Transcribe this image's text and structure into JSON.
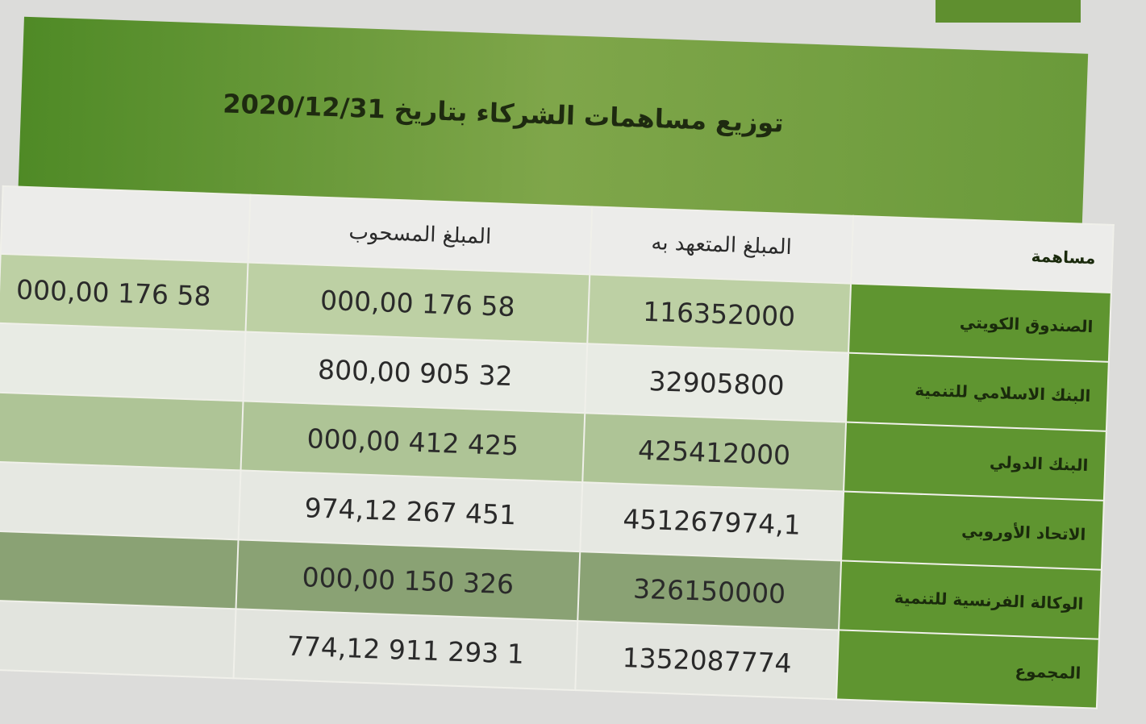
{
  "title": "توزيع مساهمات الشركاء بتاريخ 2020/12/31",
  "header": {
    "label": "مساهمة",
    "committed": "المبلغ المتعهد به",
    "withdrawn": "المبلغ المسحوب",
    "extra": ""
  },
  "rows": [
    {
      "label": "الصندوق الكويتي",
      "committed": "116352000",
      "withdrawn": "58 176 000,00",
      "extra": "58 176 000,00"
    },
    {
      "label": "البنك الاسلامي للتنمية",
      "committed": "32905800",
      "withdrawn": "32 905 800,00",
      "extra": ""
    },
    {
      "label": "البنك الدولي",
      "committed": "425412000",
      "withdrawn": "425 412 000,00",
      "extra": ""
    },
    {
      "label": "الاتحاد الأوروبي",
      "committed": "451267974,1",
      "withdrawn": "451 267 974,12",
      "extra": ""
    },
    {
      "label": "الوكالة الفرنسية للتنمية",
      "committed": "326150000",
      "withdrawn": "326 150 000,00",
      "extra": ""
    },
    {
      "label": "المجموع",
      "committed": "1352087774",
      "withdrawn": "1 293 911 774,12",
      "extra": ""
    }
  ],
  "colors": {
    "green": "#5f9530"
  }
}
